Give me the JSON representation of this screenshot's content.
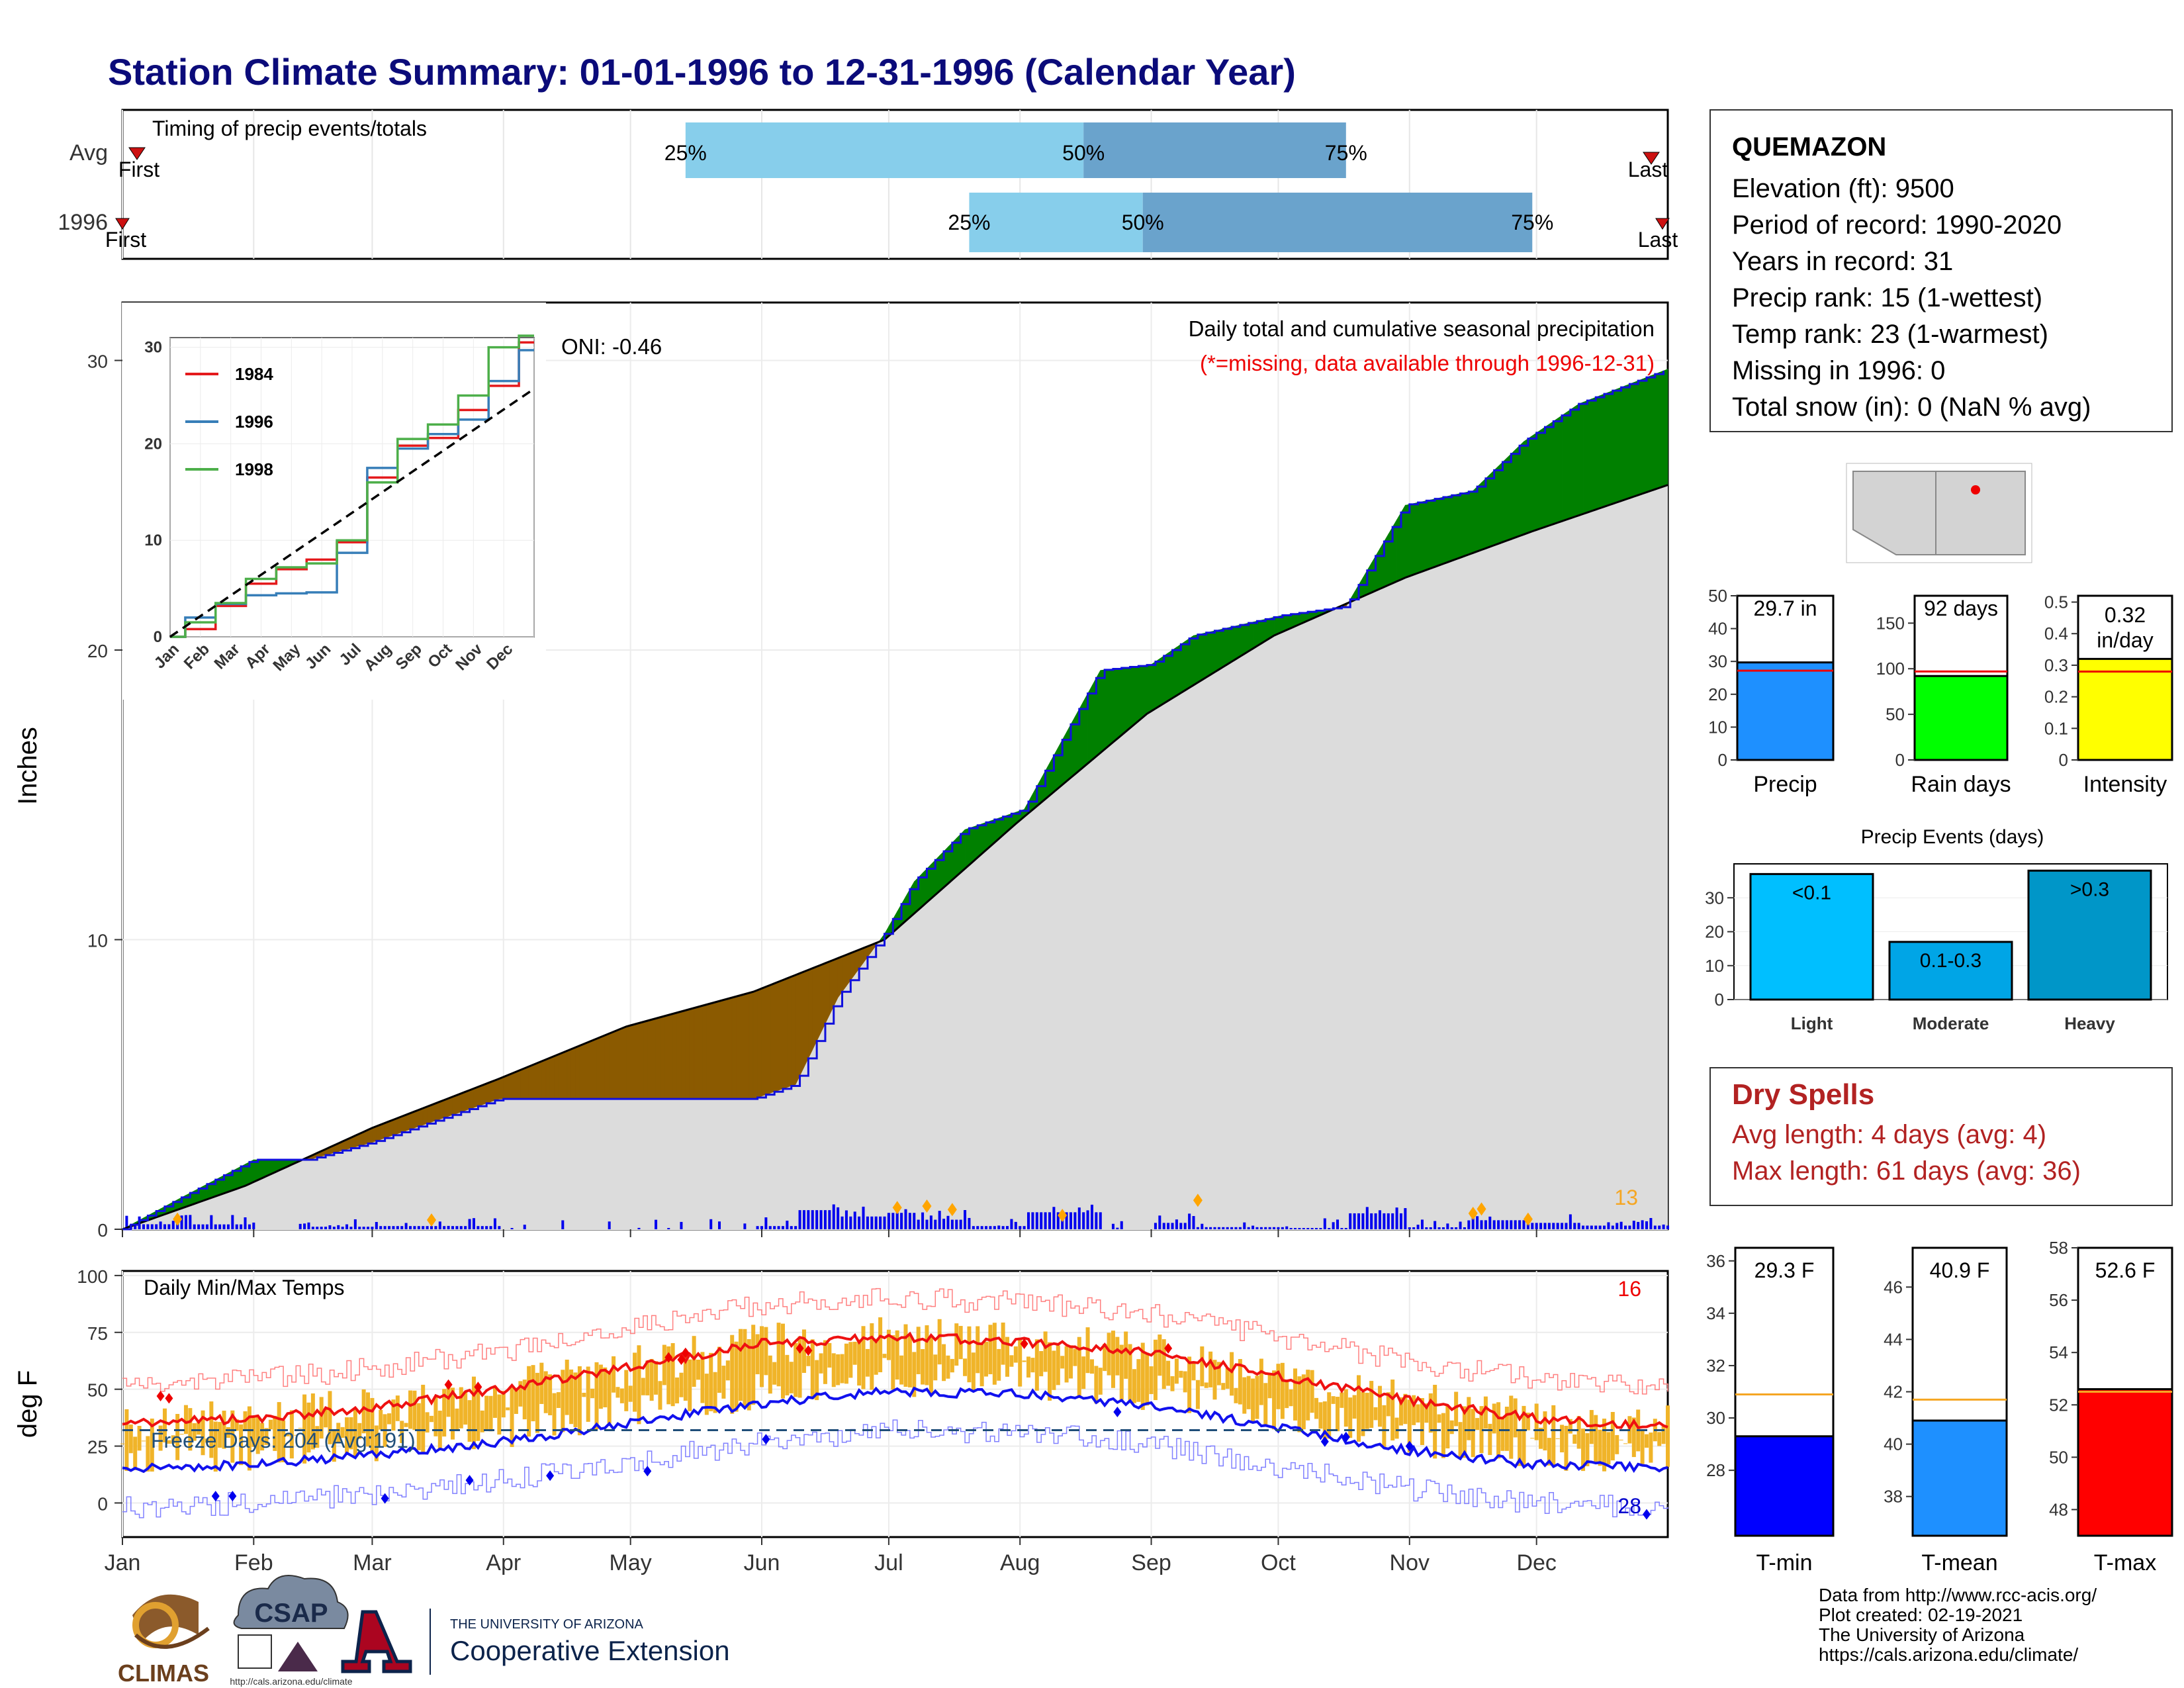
{
  "header": {
    "title": "Station Climate Summary: 01-01-1996 to 12-31-1996 (Calendar Year)"
  },
  "timing_panel": {
    "label": "Timing of precip events/totals",
    "rows": [
      {
        "name": "Avg",
        "p25": "25%",
        "p50": "50%",
        "p75": "75%",
        "first": "First",
        "last": "Last"
      },
      {
        "name": "1996",
        "p25": "25%",
        "p50": "50%",
        "p75": "75%",
        "first": "First",
        "last": "Last"
      }
    ],
    "colors": {
      "light": "#87ceeb",
      "dark": "#6aa3cc",
      "marker": "#cc1111"
    }
  },
  "precip_panel": {
    "ylabel": "Inches",
    "oni": "ONI: -0.46",
    "legend_title": "Daily total and cumulative seasonal precipitation",
    "missing_note": "(*=missing, data available through 1996-12-31)",
    "corner_count": "13",
    "colors": {
      "above": "#008000",
      "below": "#8b5a00",
      "avg_fill": "#dcdcdc",
      "obs_line": "#1010dd",
      "daily_bar": "#0000ee",
      "extreme": "#ffa500"
    }
  },
  "inset": {
    "series": [
      {
        "name": "1984",
        "color": "#e41a1c"
      },
      {
        "name": "1996",
        "color": "#377eb8"
      },
      {
        "name": "1998",
        "color": "#4daf4a"
      }
    ],
    "months": [
      "Jan",
      "Feb",
      "Mar",
      "Apr",
      "May",
      "Jun",
      "Jul",
      "Aug",
      "Sep",
      "Oct",
      "Nov",
      "Dec"
    ]
  },
  "temp_panel": {
    "ylabel": "deg F",
    "title": "Daily Min/Max Temps",
    "freeze_text": "Freeze Days: 204 (Avg:191)",
    "hot_count": "16",
    "cold_count": "28",
    "colors": {
      "bar": "#f0b429",
      "max_line": "#ee1111",
      "min_line": "#1111ee",
      "freeze": "#1f4e79"
    }
  },
  "station": {
    "name": "QUEMAZON",
    "lines": [
      "Elevation (ft): 9500",
      "Period of record: 1990-2020",
      "Years in record: 31",
      "Precip rank: 15 (1-wettest)",
      "Temp rank: 23 (1-warmest)",
      "Missing in 1996: 0",
      "Total snow (in): 0 (NaN % avg)"
    ]
  },
  "summary_bars": [
    {
      "label": "Precip",
      "value_text": "29.7 in",
      "color": "#1e90ff"
    },
    {
      "label": "Rain days",
      "value_text": "92 days",
      "color": "#00ff00"
    },
    {
      "label": "Intensity",
      "value_text": "0.32 in/day",
      "color": "#ffff00"
    }
  ],
  "precip_events": {
    "title": "Precip Events (days)",
    "bars": [
      {
        "label": "Light",
        "inner": "<0.1",
        "color": "#00bfff"
      },
      {
        "label": "Moderate",
        "inner": "0.1-0.3",
        "color": "#00a5e6"
      },
      {
        "label": "Heavy",
        "inner": ">0.3",
        "color": "#0096c8"
      }
    ]
  },
  "dry_spells": {
    "title": "Dry Spells",
    "avg": "Avg length: 4 days (avg: 4)",
    "max": "Max length: 61 days (avg: 36)"
  },
  "temp_bars": [
    {
      "label": "T-min",
      "value_text": "29.3 F",
      "color": "#0000ff"
    },
    {
      "label": "T-mean",
      "value_text": "40.9 F",
      "color": "#1e90ff"
    },
    {
      "label": "T-max",
      "value_text": "52.6 F",
      "color": "#ff0000"
    }
  ],
  "footer": {
    "lines": [
      "Data from http://www.rcc-acis.org/",
      "Plot created: 02-19-2021",
      "The University of Arizona",
      "https://cals.arizona.edu/climate/"
    ],
    "logos": {
      "climas": "CLIMAS",
      "csap": "CSAP",
      "csap_url": "http://cals.arizona.edu/climate",
      "ua_top": "THE UNIVERSITY OF ARIZONA",
      "ua_bottom": "Cooperative Extension"
    }
  },
  "chart_data": [
    {
      "type": "bar",
      "title": "Timing of precip events/totals",
      "categories": [
        "Avg",
        "1996"
      ],
      "series": [
        {
          "name": "25%",
          "values": [
            134,
            201
          ]
        },
        {
          "name": "50%",
          "values": [
            228,
            242
          ]
        },
        {
          "name": "75%",
          "values": [
            290,
            334
          ]
        }
      ]
    },
    {
      "type": "area",
      "title": "Daily total and cumulative seasonal precipitation",
      "ylabel": "Inches",
      "ylim": [
        0,
        32
      ],
      "x_ticks": [
        "Jan",
        "Feb",
        "Mar",
        "Apr",
        "May",
        "Jun",
        "Jul",
        "Aug",
        "Sep",
        "Oct",
        "Nov",
        "Dec"
      ],
      "y_ticks": [
        0,
        10,
        20,
        30
      ],
      "series": [
        {
          "name": "observed",
          "x": [
            1,
            15,
            32,
            45,
            60,
            90,
            120,
            150,
            160,
            170,
            181,
            188,
            200,
            214,
            232,
            244,
            254,
            275,
            290,
            304,
            320,
            332,
            345,
            366
          ],
          "values": [
            0,
            1.1,
            2.4,
            2.4,
            3.0,
            4.5,
            4.5,
            4.5,
            5.0,
            8.0,
            10.2,
            12.0,
            13.8,
            14.5,
            19.3,
            19.5,
            20.5,
            21.2,
            21.5,
            25.0,
            25.5,
            27.2,
            28.5,
            29.7
          ]
        },
        {
          "name": "average",
          "x": [
            1,
            30,
            60,
            90,
            120,
            150,
            181,
            212,
            243,
            273,
            304,
            334,
            366
          ],
          "values": [
            0,
            1.5,
            3.5,
            5.2,
            7.0,
            8.2,
            10.0,
            14.0,
            17.8,
            20.5,
            22.5,
            24.1,
            25.7
          ]
        }
      ]
    },
    {
      "type": "line",
      "ylim": [
        0,
        31
      ],
      "x_ticks": [
        "Jan",
        "Feb",
        "Mar",
        "Apr",
        "May",
        "Jun",
        "Jul",
        "Aug",
        "Sep",
        "Oct",
        "Nov",
        "Dec"
      ],
      "y_ticks": [
        0,
        10,
        20,
        30
      ],
      "series": [
        {
          "name": "1984",
          "x": [
            0,
            1,
            2,
            3,
            4,
            5,
            6,
            7,
            8,
            9,
            10,
            11,
            12
          ],
          "values": [
            0,
            0.8,
            3.2,
            5.5,
            7.0,
            8.0,
            9.8,
            16.5,
            19.8,
            20.6,
            23.5,
            26.0,
            30.5
          ]
        },
        {
          "name": "1996",
          "x": [
            0,
            1,
            2,
            3,
            4,
            5,
            6,
            7,
            8,
            9,
            10,
            11,
            12
          ],
          "values": [
            0,
            2.0,
            3.4,
            4.3,
            4.5,
            4.6,
            8.7,
            17.5,
            19.5,
            21.0,
            22.5,
            26.5,
            29.7
          ]
        },
        {
          "name": "1998",
          "x": [
            0,
            1,
            2,
            3,
            4,
            5,
            6,
            7,
            8,
            9,
            10,
            11,
            12
          ],
          "values": [
            0,
            1.5,
            3.5,
            6.0,
            7.2,
            7.6,
            10.0,
            16.0,
            20.5,
            22.0,
            25.0,
            30.0,
            31.2
          ]
        },
        {
          "x": [
            0,
            12
          ],
          "values": [
            0,
            25.7
          ]
        }
      ]
    },
    {
      "type": "line",
      "title": "Daily Min/Max Temps",
      "ylabel": "deg F",
      "ylim": [
        -15,
        102
      ],
      "x_ticks": [
        "Jan",
        "Feb",
        "Mar",
        "Apr",
        "May",
        "Jun",
        "Jul",
        "Aug",
        "Sep",
        "Oct",
        "Nov",
        "Dec"
      ],
      "y_ticks": [
        0,
        25,
        50,
        75,
        100
      ],
      "series": [
        {
          "name": "avg max",
          "x": [
            1,
            32,
            60,
            91,
            121,
            152,
            182,
            213,
            244,
            274,
            305,
            335,
            366
          ],
          "values": [
            35,
            37,
            42,
            50,
            60,
            70,
            73,
            71,
            66,
            56,
            45,
            37,
            34
          ]
        },
        {
          "name": "avg min",
          "x": [
            1,
            32,
            60,
            91,
            121,
            152,
            182,
            213,
            244,
            274,
            305,
            335,
            366
          ],
          "values": [
            15,
            17,
            21,
            27,
            35,
            44,
            49,
            48,
            43,
            33,
            23,
            17,
            15
          ]
        },
        {
          "name": "freeze",
          "x": [
            1,
            366
          ],
          "values": [
            32,
            32
          ]
        }
      ]
    },
    {
      "type": "bar",
      "categories": [
        "Precip",
        "Rain days",
        "Intensity"
      ],
      "values": [
        29.7,
        92,
        0.32
      ],
      "averages": [
        27.2,
        97,
        0.28
      ]
    },
    {
      "type": "bar",
      "title": "Precip Events (days)",
      "categories": [
        "Light",
        "Moderate",
        "Heavy"
      ],
      "values": [
        37,
        17,
        38
      ],
      "ylim": [
        0,
        40
      ]
    },
    {
      "type": "bar",
      "categories": [
        "T-min",
        "T-mean",
        "T-max"
      ],
      "values": [
        29.3,
        40.9,
        52.6
      ],
      "averages": [
        30.9,
        41.7,
        52.5
      ]
    }
  ]
}
